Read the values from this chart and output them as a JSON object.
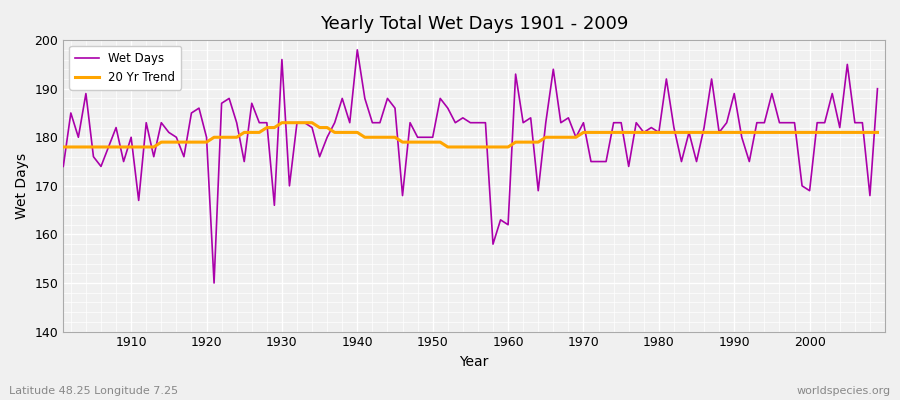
{
  "title": "Yearly Total Wet Days 1901 - 2009",
  "xlabel": "Year",
  "ylabel": "Wet Days",
  "footnote_left": "Latitude 48.25 Longitude 7.25",
  "footnote_right": "worldspecies.org",
  "line_color": "#AA00AA",
  "trend_color": "#FFA500",
  "background_color": "#F0F0F0",
  "ylim": [
    140,
    200
  ],
  "yticks": [
    140,
    150,
    160,
    170,
    180,
    190,
    200
  ],
  "xticks": [
    1910,
    1920,
    1930,
    1940,
    1950,
    1960,
    1970,
    1980,
    1990,
    2000
  ],
  "years": [
    1901,
    1902,
    1903,
    1904,
    1905,
    1906,
    1907,
    1908,
    1909,
    1910,
    1911,
    1912,
    1913,
    1914,
    1915,
    1916,
    1917,
    1918,
    1919,
    1920,
    1921,
    1922,
    1923,
    1924,
    1925,
    1926,
    1927,
    1928,
    1929,
    1930,
    1931,
    1932,
    1933,
    1934,
    1935,
    1936,
    1937,
    1938,
    1939,
    1940,
    1941,
    1942,
    1943,
    1944,
    1945,
    1946,
    1947,
    1948,
    1949,
    1950,
    1951,
    1952,
    1953,
    1954,
    1955,
    1956,
    1957,
    1958,
    1959,
    1960,
    1961,
    1962,
    1963,
    1964,
    1965,
    1966,
    1967,
    1968,
    1969,
    1970,
    1971,
    1972,
    1973,
    1974,
    1975,
    1976,
    1977,
    1978,
    1979,
    1980,
    1981,
    1982,
    1983,
    1984,
    1985,
    1986,
    1987,
    1988,
    1989,
    1990,
    1991,
    1992,
    1993,
    1994,
    1995,
    1996,
    1997,
    1998,
    1999,
    2000,
    2001,
    2002,
    2003,
    2004,
    2005,
    2006,
    2007,
    2008,
    2009
  ],
  "wet_days": [
    174,
    185,
    180,
    189,
    176,
    174,
    178,
    182,
    175,
    180,
    167,
    183,
    176,
    183,
    181,
    180,
    176,
    185,
    186,
    180,
    150,
    187,
    188,
    183,
    175,
    187,
    183,
    183,
    166,
    196,
    170,
    183,
    183,
    182,
    176,
    180,
    183,
    188,
    183,
    198,
    188,
    183,
    183,
    188,
    186,
    168,
    183,
    180,
    180,
    180,
    188,
    186,
    183,
    184,
    183,
    183,
    183,
    158,
    163,
    162,
    193,
    183,
    184,
    169,
    183,
    194,
    183,
    184,
    180,
    183,
    175,
    175,
    175,
    183,
    183,
    174,
    183,
    181,
    182,
    181,
    192,
    182,
    175,
    181,
    175,
    182,
    192,
    181,
    183,
    189,
    180,
    175,
    183,
    183,
    189,
    183,
    183,
    183,
    170,
    169,
    183,
    183,
    189,
    182,
    195,
    183,
    183,
    168,
    190
  ],
  "trend": [
    178,
    178,
    178,
    178,
    178,
    178,
    178,
    178,
    178,
    178,
    178,
    178,
    178,
    179,
    179,
    179,
    179,
    179,
    179,
    179,
    180,
    180,
    180,
    180,
    181,
    181,
    181,
    182,
    182,
    183,
    183,
    183,
    183,
    183,
    182,
    182,
    181,
    181,
    181,
    181,
    180,
    180,
    180,
    180,
    180,
    179,
    179,
    179,
    179,
    179,
    179,
    178,
    178,
    178,
    178,
    178,
    178,
    178,
    178,
    178,
    179,
    179,
    179,
    179,
    180,
    180,
    180,
    180,
    180,
    181,
    181,
    181,
    181,
    181,
    181,
    181,
    181,
    181,
    181,
    181,
    181,
    181,
    181,
    181,
    181,
    181,
    181,
    181,
    181,
    181,
    181,
    181,
    181,
    181,
    181,
    181,
    181,
    181,
    181,
    181,
    181,
    181,
    181,
    181,
    181,
    181,
    181,
    181,
    181
  ]
}
